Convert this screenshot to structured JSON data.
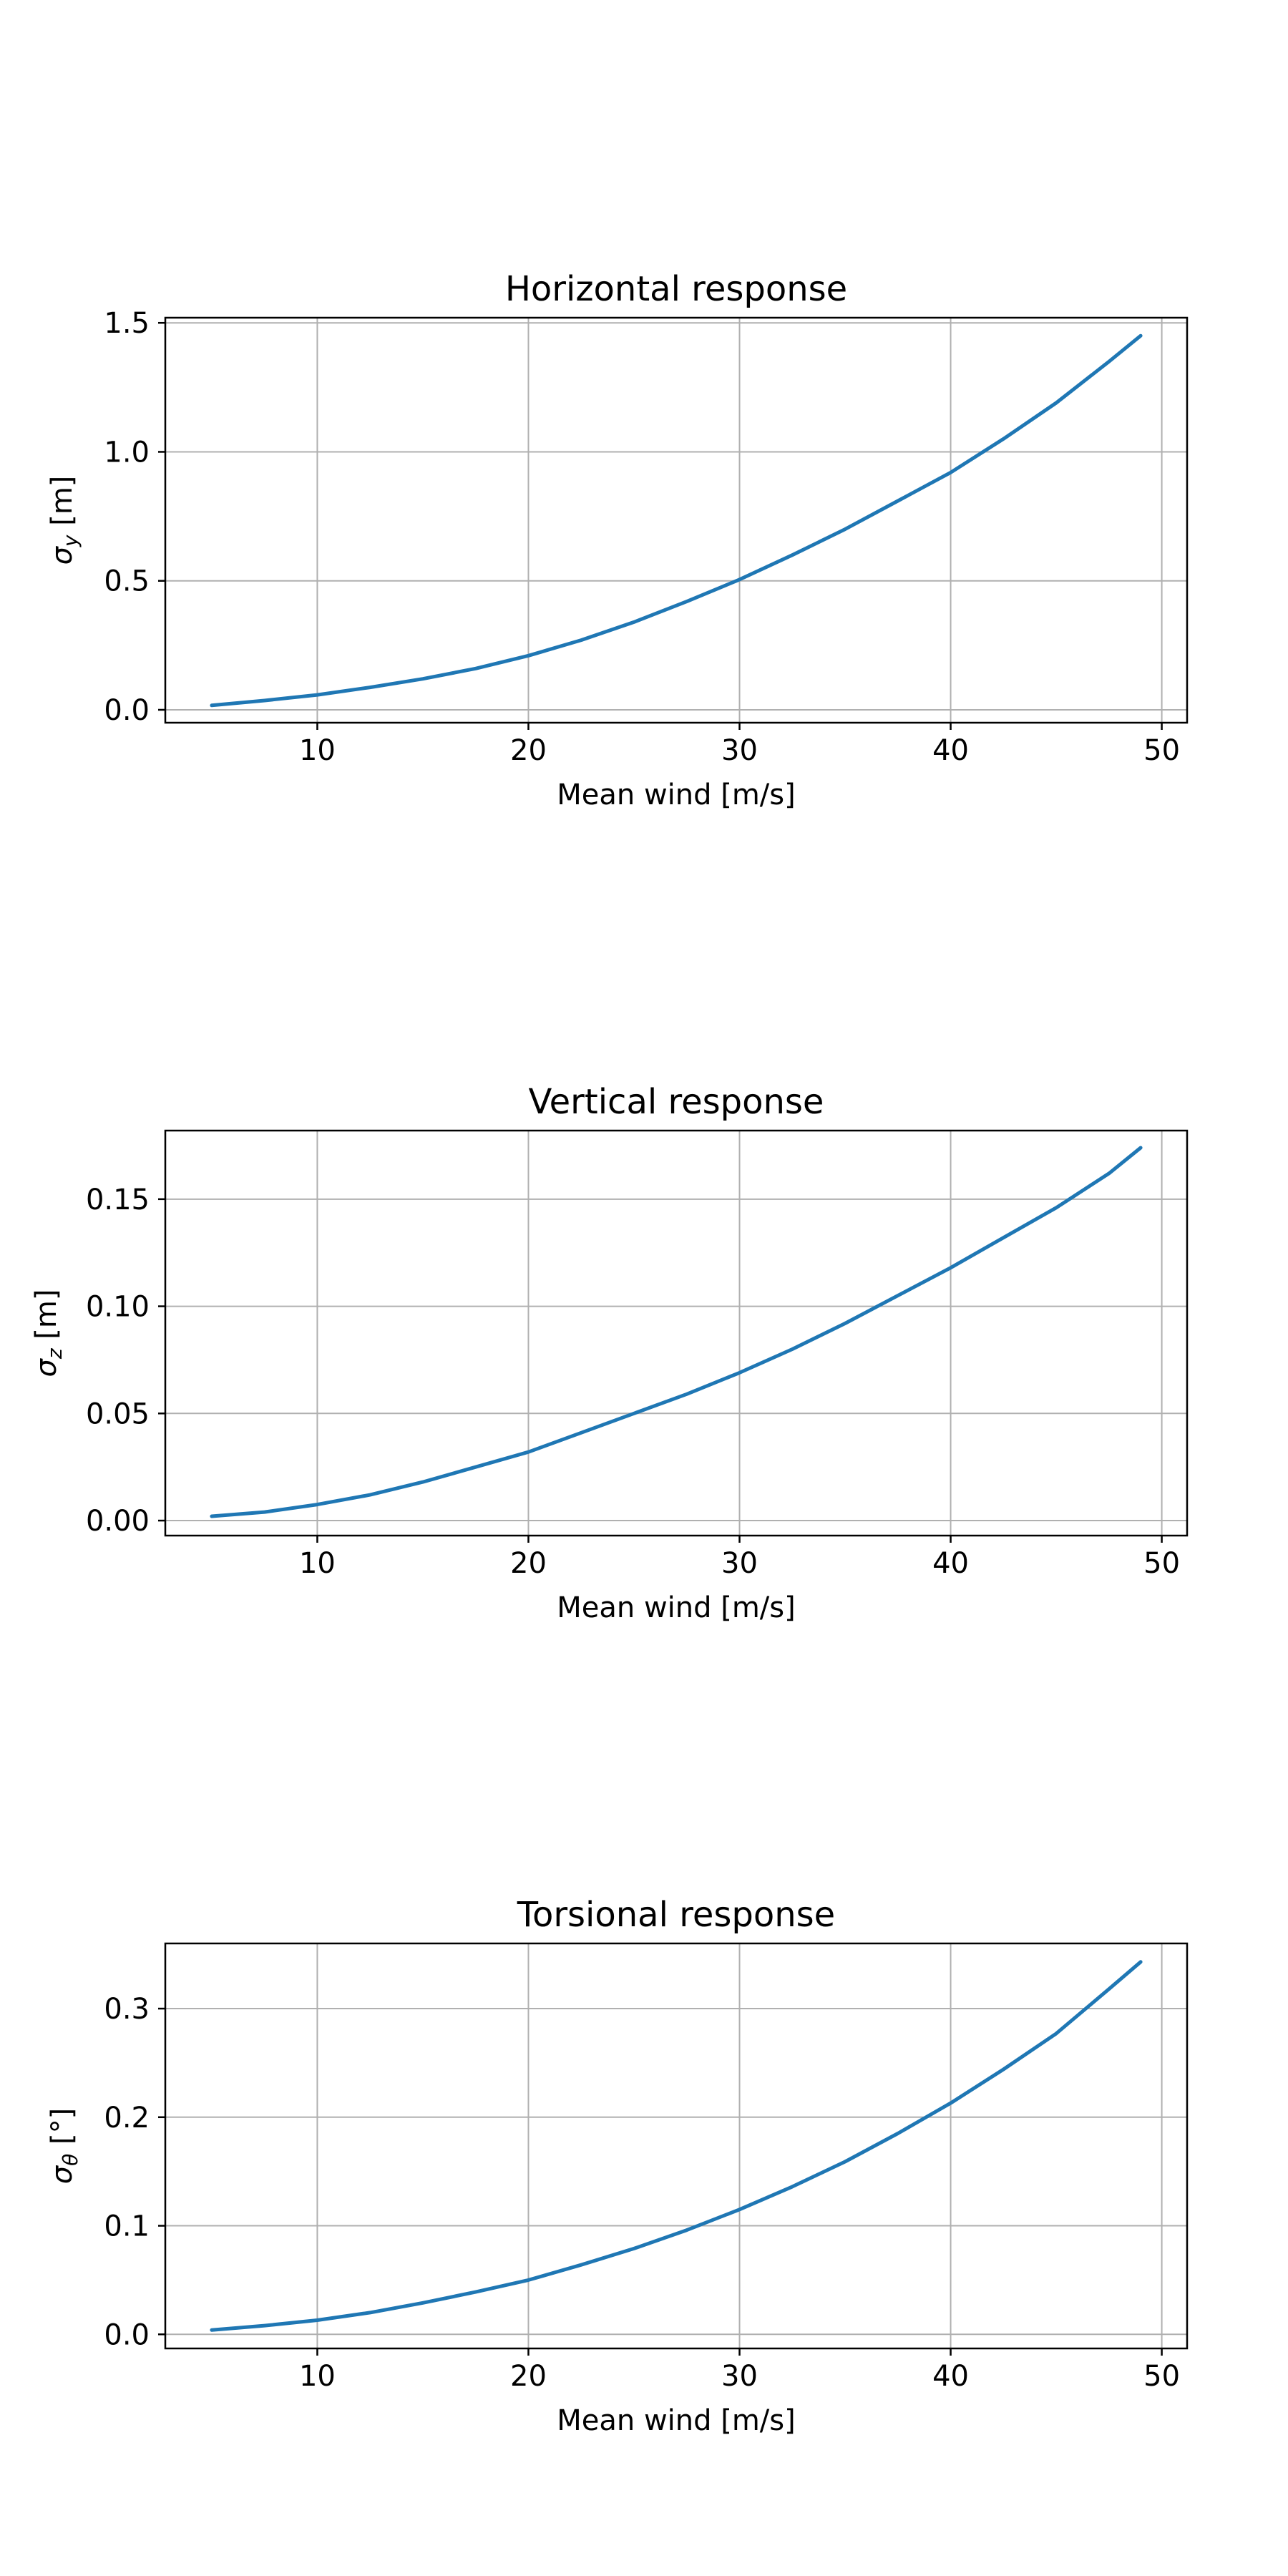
{
  "figure": {
    "colors": {
      "series": "#1f77b4",
      "grid": "#b0b0b0",
      "frame": "#000000"
    }
  },
  "chart_data": [
    {
      "type": "line",
      "title": "Horizontal response",
      "xlabel": "Mean wind [m/s]",
      "ylabel": "σ_y [m]",
      "ylabel_parts": {
        "symbol": "σ",
        "subscript": "y",
        "unit": " [m]"
      },
      "xlim": [
        2.8,
        51.2
      ],
      "ylim": [
        -0.05,
        1.52
      ],
      "grid": true,
      "xticks": [
        10,
        20,
        30,
        40,
        50
      ],
      "xtick_labels": [
        "10",
        "20",
        "30",
        "40",
        "50"
      ],
      "yticks": [
        0.0,
        0.5,
        1.0,
        1.5
      ],
      "ytick_labels": [
        "0.0",
        "0.5",
        "1.0",
        "1.5"
      ],
      "series": [
        {
          "x": [
            5,
            7.5,
            10,
            12.5,
            15,
            17.5,
            20,
            22.5,
            25,
            27.5,
            30,
            32.5,
            35,
            37.5,
            40,
            42.5,
            45,
            47.5,
            49
          ],
          "y": [
            0.017,
            0.036,
            0.058,
            0.087,
            0.12,
            0.16,
            0.21,
            0.27,
            0.34,
            0.42,
            0.505,
            0.6,
            0.7,
            0.81,
            0.92,
            1.05,
            1.19,
            1.35,
            1.45
          ]
        }
      ]
    },
    {
      "type": "line",
      "title": "Vertical response",
      "xlabel": "Mean wind [m/s]",
      "ylabel": "σ_z [m]",
      "ylabel_parts": {
        "symbol": "σ",
        "subscript": "z",
        "unit": " [m]"
      },
      "xlim": [
        2.8,
        51.2
      ],
      "ylim": [
        -0.007,
        0.182
      ],
      "grid": true,
      "xticks": [
        10,
        20,
        30,
        40,
        50
      ],
      "xtick_labels": [
        "10",
        "20",
        "30",
        "40",
        "50"
      ],
      "yticks": [
        0.0,
        0.05,
        0.1,
        0.15
      ],
      "ytick_labels": [
        "0.00",
        "0.05",
        "0.10",
        "0.15"
      ],
      "series": [
        {
          "x": [
            5,
            7.5,
            10,
            12.5,
            15,
            17.5,
            20,
            22.5,
            25,
            27.5,
            30,
            32.5,
            35,
            37.5,
            40,
            42.5,
            45,
            47.5,
            49
          ],
          "y": [
            0.002,
            0.004,
            0.0075,
            0.012,
            0.018,
            0.025,
            0.032,
            0.041,
            0.05,
            0.059,
            0.069,
            0.08,
            0.092,
            0.105,
            0.118,
            0.132,
            0.146,
            0.162,
            0.174
          ]
        }
      ]
    },
    {
      "type": "line",
      "title": "Torsional response",
      "xlabel": "Mean wind [m/s]",
      "ylabel": "σ_θ [°]",
      "ylabel_parts": {
        "symbol": "σ",
        "subscript": "θ",
        "unit": " [°]"
      },
      "xlim": [
        2.8,
        51.2
      ],
      "ylim": [
        -0.013,
        0.36
      ],
      "grid": true,
      "xticks": [
        10,
        20,
        30,
        40,
        50
      ],
      "xtick_labels": [
        "10",
        "20",
        "30",
        "40",
        "50"
      ],
      "yticks": [
        0.0,
        0.1,
        0.2,
        0.3
      ],
      "ytick_labels": [
        "0.0",
        "0.1",
        "0.2",
        "0.3"
      ],
      "series": [
        {
          "x": [
            5,
            7.5,
            10,
            12.5,
            15,
            17.5,
            20,
            22.5,
            25,
            27.5,
            30,
            32.5,
            35,
            37.5,
            40,
            42.5,
            45,
            47.5,
            49
          ],
          "y": [
            0.004,
            0.008,
            0.013,
            0.02,
            0.029,
            0.039,
            0.05,
            0.064,
            0.079,
            0.096,
            0.115,
            0.136,
            0.159,
            0.185,
            0.213,
            0.244,
            0.277,
            0.318,
            0.343
          ]
        }
      ]
    }
  ]
}
